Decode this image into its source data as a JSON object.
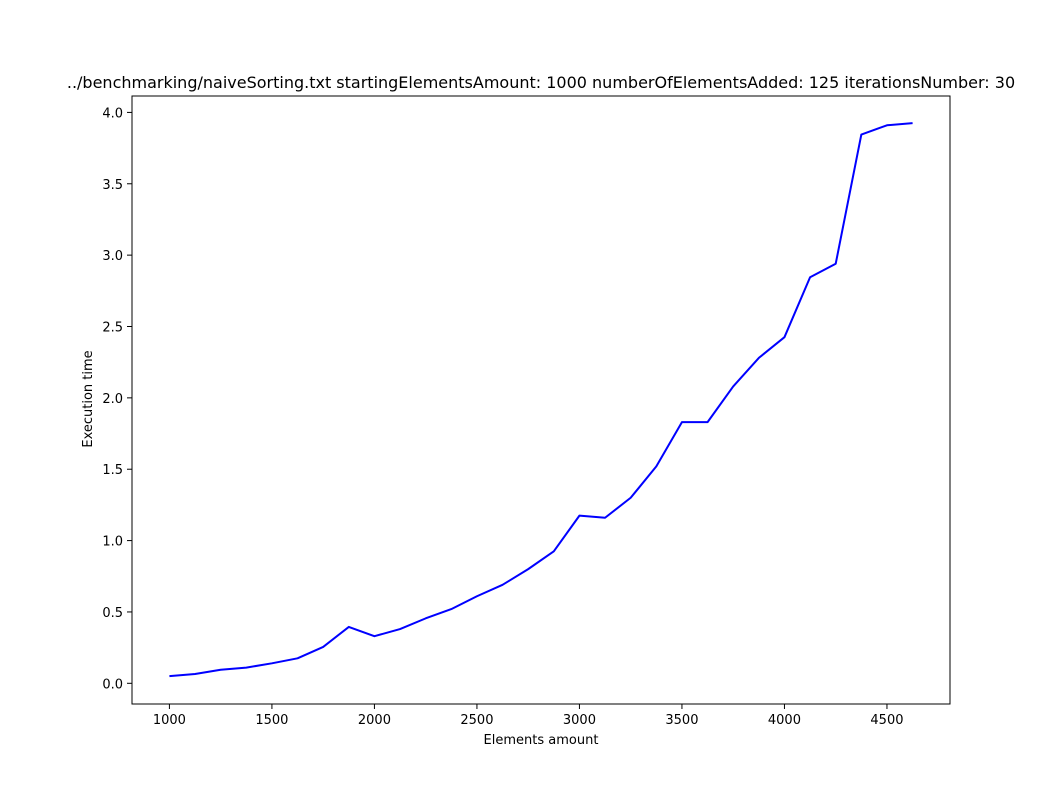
{
  "chart_data": {
    "type": "line",
    "title": "../benchmarking/naiveSorting.txt startingElementsAmount: 1000 numberOfElementsAdded: 125 iterationsNumber: 30",
    "xlabel": "Elements amount",
    "ylabel": "Execution time",
    "xlim": [
      817.5,
      4807.5
    ],
    "ylim": [
      -0.145,
      4.115
    ],
    "xticks": [
      1000,
      1500,
      2000,
      2500,
      3000,
      3500,
      4000,
      4500
    ],
    "xtick_labels": [
      "1000",
      "1500",
      "2000",
      "2500",
      "3000",
      "3500",
      "4000",
      "4500"
    ],
    "yticks": [
      0.0,
      0.5,
      1.0,
      1.5,
      2.0,
      2.5,
      3.0,
      3.5,
      4.0
    ],
    "ytick_labels": [
      "0.0",
      "0.5",
      "1.0",
      "1.5",
      "2.0",
      "2.5",
      "3.0",
      "3.5",
      "4.0"
    ],
    "grid": false,
    "series": [
      {
        "color": "#0000ff",
        "x": [
          1000,
          1125,
          1250,
          1375,
          1500,
          1625,
          1750,
          1875,
          2000,
          2125,
          2250,
          2375,
          2500,
          2625,
          2750,
          2875,
          3000,
          3125,
          3250,
          3375,
          3500,
          3625,
          3750,
          3875,
          4000,
          4125,
          4250,
          4375,
          4500,
          4625
        ],
        "y": [
          0.05,
          0.065,
          0.095,
          0.11,
          0.14,
          0.175,
          0.255,
          0.395,
          0.33,
          0.38,
          0.455,
          0.52,
          0.61,
          0.69,
          0.8,
          0.925,
          1.175,
          1.16,
          1.3,
          1.52,
          1.83,
          1.83,
          2.08,
          2.28,
          2.425,
          2.845,
          2.94,
          3.845,
          3.91,
          3.925
        ]
      }
    ]
  }
}
